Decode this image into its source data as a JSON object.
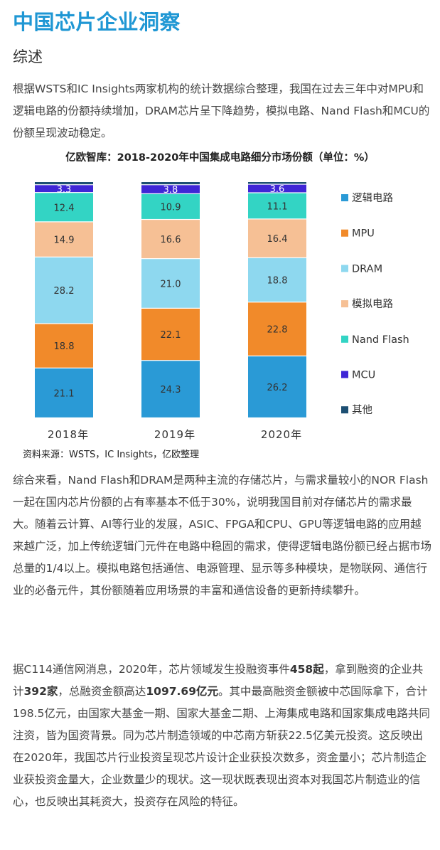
{
  "page": {
    "title": "中国芯片企业洞察",
    "section": "综述",
    "intro": "根据WSTS和IC Insights两家机构的统计数据综合整理，我国在过去三年中对MPU和逻辑电路的份额持续增加，DRAM芯片呈下降趋势，模拟电路、Nand Flash和MCU的份额呈现波动稳定。",
    "source": "资料来源：WSTS，IC Insights，亿欧整理",
    "para2": "综合来看，Nand Flash和DRAM是两种主流的存储芯片，与需求量较小的NOR Flash一起在国内芯片份额的占有率基本不低于30%，说明我国目前对存储芯片的需求最大。随着云计算、AI等行业的发展，ASIC、FPGA和CPU、GPU等逻辑电路的应用越来越广泛，加上传统逻辑门元件在电路中稳固的需求，使得逻辑电路份额已经占据市场总量的1/4以上。模拟电路包括通信、电源管理、显示等多种模块，是物联网、通信行业的必备元件，其份额随着应用场景的丰富和通信设备的更新持续攀升。",
    "para3": {
      "t1": "据C114通信网消息，2020年，芯片领域发生投融资事件",
      "b1": "458起",
      "t2": "，拿到融资的企业共计",
      "b2": "392家",
      "t3": "，总融资金额高达",
      "b3": "1097.69亿元",
      "t4": "。其中最高融资金额被中芯国际拿下，合计198.5亿元，由国家大基金一期、国家大基金二期、上海集成电路和国家集成电路共同注资，皆为国资背景。同为芯片制造领域的中芯南方斩获22.5亿美元投资。这反映出在2020年，我国芯片行业投资呈现芯片设计企业获投次数多，资金量小；芯片制造企业获投资金量大，企业数量少的现状。这一现状既表现出资本对我国芯片制造业的信心，也反映出其耗资大，投资存在风险的特征。"
    }
  },
  "chart_data": {
    "type": "bar",
    "stacked": true,
    "title": "亿欧智库：2018-2020年中国集成电路细分市场份额（单位：%）",
    "categories": [
      "2018年",
      "2019年",
      "2020年"
    ],
    "series": [
      {
        "name": "逻辑电路",
        "values": [
          21.1,
          24.3,
          26.2
        ],
        "color": "#2a9ad6",
        "show_labels": true
      },
      {
        "name": "MPU",
        "values": [
          18.8,
          22.1,
          22.8
        ],
        "color": "#f18a2a",
        "show_labels": true
      },
      {
        "name": "DRAM",
        "values": [
          28.2,
          21.0,
          18.8
        ],
        "color": "#8ed8ef",
        "show_labels": true
      },
      {
        "name": "模拟电路",
        "values": [
          14.9,
          16.6,
          16.4
        ],
        "color": "#f6c095",
        "show_labels": true
      },
      {
        "name": "Nand Flash",
        "values": [
          12.4,
          10.9,
          11.1
        ],
        "color": "#33d4c4",
        "show_labels": true
      },
      {
        "name": "MCU",
        "values": [
          3.3,
          3.8,
          3.6
        ],
        "color": "#3f26d6",
        "show_labels": true
      },
      {
        "name": "其他",
        "values": [
          1.3,
          1.3,
          1.1
        ],
        "color": "#1d4f73",
        "show_labels": false
      }
    ],
    "ylim": [
      0,
      100
    ],
    "grid": false,
    "legend_position": "right"
  }
}
